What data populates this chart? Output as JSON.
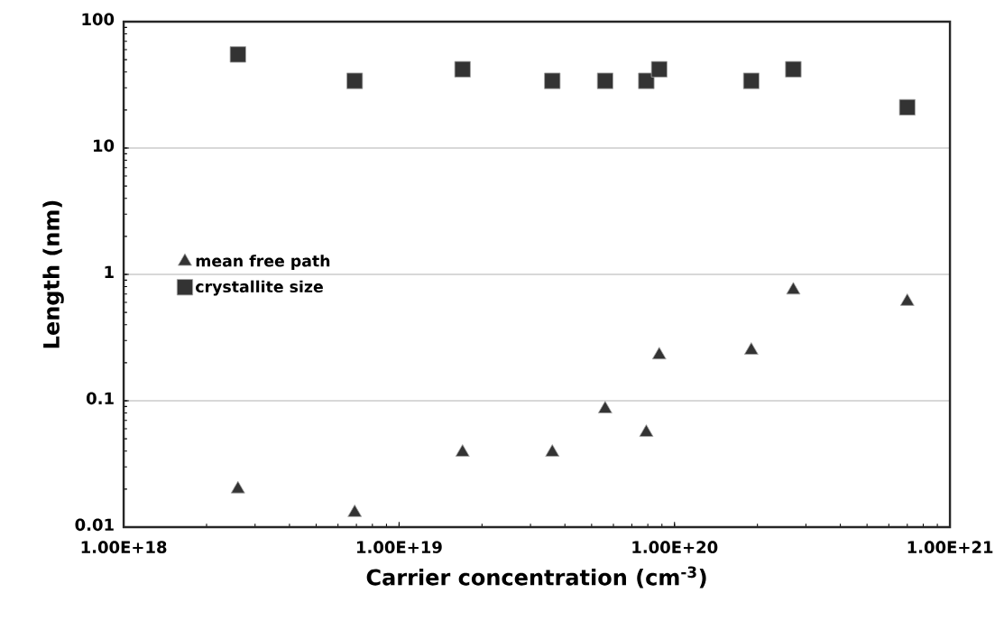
{
  "chart_data": {
    "type": "scatter",
    "xlabel": "Carrier concentration (cm$^{-3}$)",
    "ylabel": "Length (nm)",
    "log": "xy",
    "xlim": [
      1e+18,
      1e+21
    ],
    "xticks": [
      {
        "value": 1e+18,
        "label": "1.00E+18"
      },
      {
        "value": 1e+19,
        "label": "1.00E+19"
      },
      {
        "value": 1e+20,
        "label": "1.00E+20"
      },
      {
        "value": 1e+21,
        "label": "1.00E+21"
      }
    ],
    "ylim": [
      0.01,
      100
    ],
    "yticks": [
      0.01,
      0.1,
      1,
      10,
      100
    ],
    "grid": "y",
    "legend": "left",
    "x": [
      2.6e+18,
      6.9e+18,
      1.7e+19,
      3.6e+19,
      5.6e+19,
      7.9e+19,
      8.8e+19,
      1.9e+20,
      2.7e+20,
      7e+20
    ],
    "series": [
      {
        "name": "mean free path",
        "color": "#333333",
        "marker": "triangle",
        "values": [
          0.02,
          0.013,
          0.039,
          0.039,
          0.086,
          0.056,
          0.23,
          0.25,
          0.75,
          0.61
        ]
      },
      {
        "name": "crystallite size",
        "color": "#333333",
        "marker": "square",
        "values": [
          55,
          34,
          42,
          34,
          34,
          34,
          42,
          34,
          42,
          21
        ]
      }
    ]
  }
}
